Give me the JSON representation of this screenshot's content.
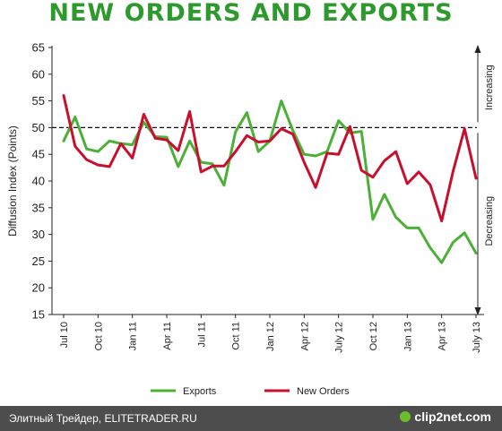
{
  "colors": {
    "title": "#2e9a2e",
    "exports": "#4caf37",
    "new_orders": "#c8102e",
    "footer_bg": "#4d4d4d",
    "logo_accent": "#f5a623",
    "logo_dot": "#6cbf2c"
  },
  "footer": {
    "left_text": "Элитный Трейдер, ELITETRADER.RU",
    "logo_text": "clip2net.com",
    "logo_icon": "upload-dot-icon"
  },
  "chart_data": {
    "type": "line",
    "title": "NEW ORDERS AND EXPORTS",
    "ylabel": "Diffusion Index (Points)",
    "xlabel": "",
    "ylim": [
      15,
      65
    ],
    "yticks": [
      15,
      20,
      25,
      30,
      35,
      40,
      45,
      50,
      55,
      60,
      65
    ],
    "x_tick_labels": [
      {
        "index": 0,
        "label": "Jul 10"
      },
      {
        "index": 3,
        "label": "Oct 10"
      },
      {
        "index": 6,
        "label": "Jan 11"
      },
      {
        "index": 9,
        "label": "Apr 11"
      },
      {
        "index": 12,
        "label": "Jul 11"
      },
      {
        "index": 15,
        "label": "Oct 11"
      },
      {
        "index": 18,
        "label": "Jan 12"
      },
      {
        "index": 21,
        "label": "Apr 12"
      },
      {
        "index": 24,
        "label": "July 12"
      },
      {
        "index": 27,
        "label": "Oct 12"
      },
      {
        "index": 30,
        "label": "Jan 13"
      },
      {
        "index": 33,
        "label": "Apr 13"
      },
      {
        "index": 36,
        "label": "July 13"
      }
    ],
    "reference_line": 50,
    "side_labels": {
      "increasing": "Increasing",
      "decreasing": "Decreasing"
    },
    "grid": false,
    "legend_position": "bottom-center",
    "series": [
      {
        "name": "Exports",
        "color": "#4caf37",
        "values": [
          47.5,
          52.0,
          46.0,
          45.5,
          47.5,
          47.0,
          46.8,
          51.0,
          48.3,
          48.2,
          42.7,
          47.5,
          43.5,
          43.2,
          39.2,
          49.2,
          52.8,
          45.5,
          47.5,
          55.0,
          49.5,
          45.0,
          44.7,
          45.5,
          51.3,
          49.0,
          49.3,
          32.8,
          37.5,
          33.2,
          31.2,
          31.2,
          27.5,
          24.7,
          28.5,
          30.3,
          26.5
        ]
      },
      {
        "name": "New Orders",
        "color": "#c8102e",
        "values": [
          56.0,
          46.5,
          44.0,
          43.0,
          42.7,
          47.0,
          44.3,
          52.5,
          48.0,
          47.7,
          45.7,
          53.0,
          41.7,
          42.8,
          42.8,
          45.5,
          48.5,
          47.3,
          47.5,
          49.8,
          48.8,
          43.5,
          38.8,
          45.2,
          45.0,
          50.2,
          42.0,
          40.7,
          43.8,
          45.5,
          39.5,
          41.7,
          39.3,
          32.5,
          41.8,
          49.8,
          40.5
        ]
      }
    ]
  }
}
